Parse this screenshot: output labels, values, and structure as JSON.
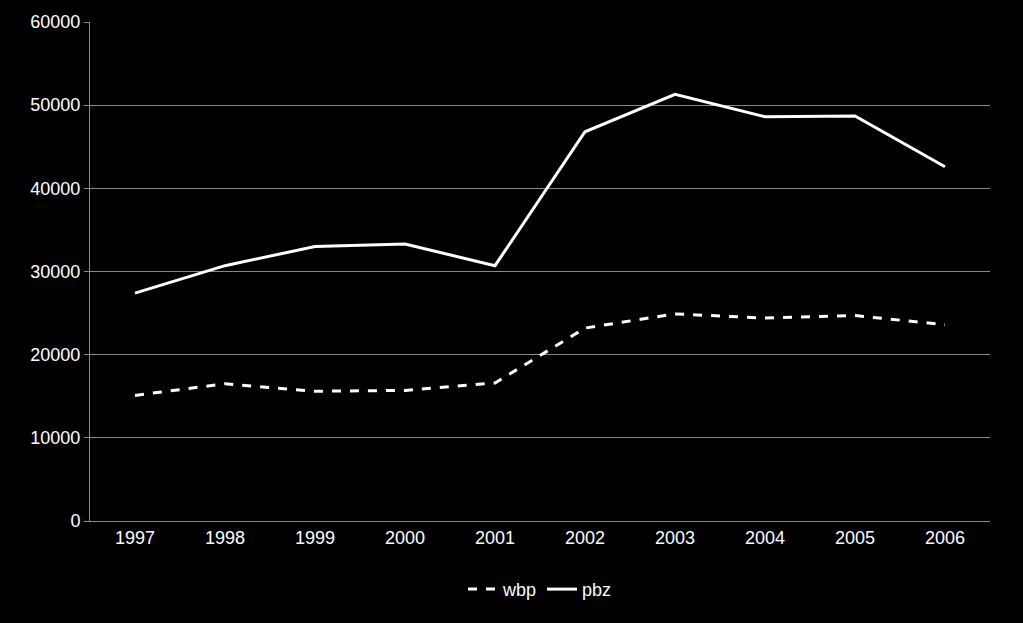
{
  "chart_data": {
    "type": "line",
    "categories": [
      "1997",
      "1998",
      "1999",
      "2000",
      "2001",
      "2002",
      "2003",
      "2004",
      "2005",
      "2006"
    ],
    "series": [
      {
        "name": "wbp",
        "color": "#ffffff",
        "line_style": "dash",
        "values": [
          15100,
          16500,
          15600,
          15700,
          16600,
          23200,
          24900,
          24400,
          24700,
          23600
        ]
      },
      {
        "name": "pbz",
        "color": "#ffffff",
        "line_style": "solid",
        "values": [
          27400,
          30700,
          33000,
          33300,
          30700,
          46800,
          51300,
          48600,
          48700,
          42600
        ]
      }
    ],
    "ylim": [
      0,
      60000
    ],
    "yticks": [
      0,
      10000,
      20000,
      30000,
      40000,
      50000,
      60000
    ],
    "grid": true,
    "legend": "bottom"
  }
}
